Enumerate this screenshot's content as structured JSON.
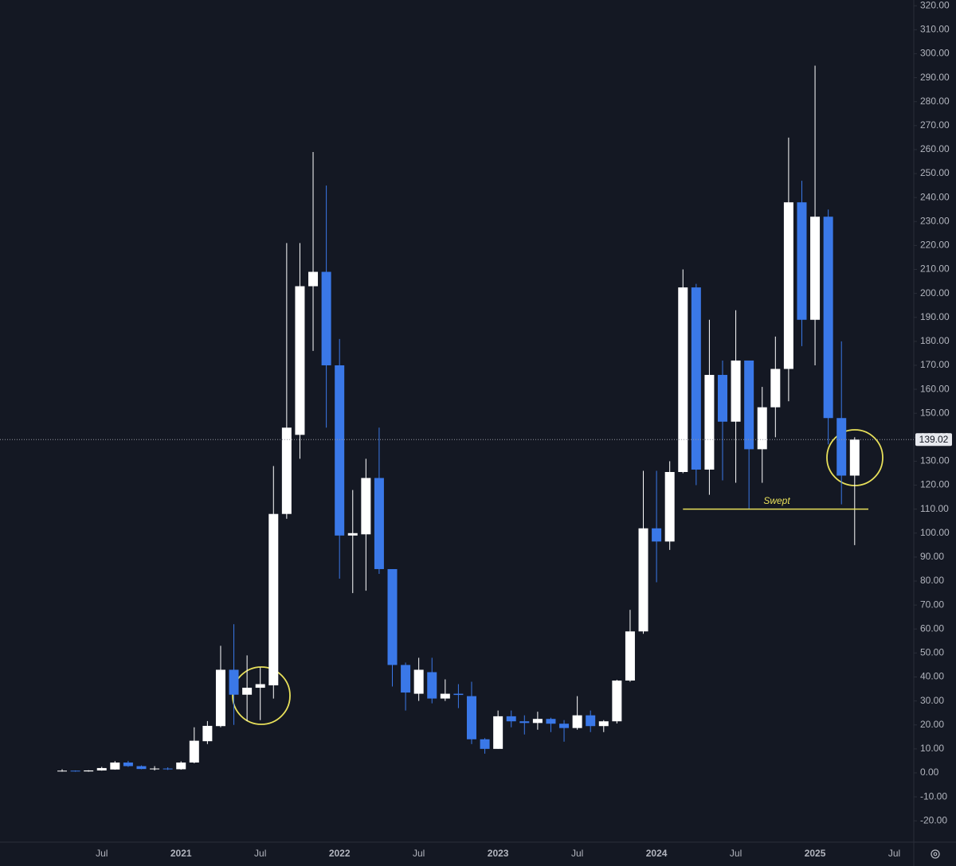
{
  "chart_data": {
    "type": "candlestick",
    "categories": [
      null,
      null,
      null,
      "Jul",
      null,
      null,
      null,
      null,
      null,
      "2021",
      null,
      null,
      null,
      null,
      null,
      "Jul",
      null,
      null,
      null,
      null,
      null,
      "2022",
      null,
      null,
      null,
      null,
      null,
      "Jul",
      null,
      null,
      null,
      null,
      null,
      "2023",
      null,
      null,
      null,
      null,
      null,
      "Jul",
      null,
      null,
      null,
      null,
      null,
      "2024",
      null,
      null,
      null,
      null,
      null,
      "Jul",
      null,
      null,
      null,
      null,
      null,
      "2025",
      null,
      null,
      null,
      null,
      null,
      "Jul"
    ],
    "open": [
      0.6,
      0.9,
      0.6,
      1.0,
      1.4,
      4.3,
      2.8,
      1.6,
      1.8,
      1.5,
      4.3,
      13.2,
      19.5,
      43,
      32.6,
      35.5,
      36.5,
      108,
      141,
      203,
      209,
      170,
      99,
      99.5,
      123,
      85,
      45,
      33,
      42,
      31,
      33,
      32,
      14,
      10,
      23.6,
      21.5,
      20.8,
      22.5,
      20.5,
      18.7,
      24,
      19.5,
      21.5,
      38.5,
      59,
      102,
      96.5,
      125.5,
      202.5,
      126.5,
      166,
      146.5,
      172,
      135,
      152.5,
      168.5,
      238,
      189,
      232,
      148,
      124,
      null,
      null,
      null
    ],
    "high": [
      1.5,
      1.0,
      1.1,
      2.5,
      4.9,
      5,
      3.1,
      2.8,
      2.3,
      4.8,
      19,
      21.6,
      53,
      62,
      49,
      44,
      128,
      221,
      221,
      259,
      245,
      181,
      118,
      131,
      144,
      85,
      46,
      48,
      48,
      39,
      37,
      38,
      14.5,
      26,
      26,
      24,
      25.5,
      23,
      22,
      32,
      26,
      22,
      38.8,
      68,
      126,
      126,
      130,
      210,
      204,
      189,
      172,
      193,
      172,
      161,
      182,
      265,
      247,
      295,
      235,
      180,
      140,
      null,
      null,
      null
    ],
    "low": [
      0.5,
      0.5,
      0.5,
      0.9,
      1.3,
      2.5,
      1.5,
      1.0,
      1.2,
      1.3,
      4,
      12,
      19,
      20,
      21.6,
      22,
      31,
      106,
      131,
      176,
      144,
      81,
      75,
      76,
      83,
      36,
      26,
      30,
      29,
      30,
      27,
      12,
      8,
      10,
      19,
      16,
      18,
      17,
      13,
      18,
      17,
      17,
      20.6,
      38,
      58,
      79.5,
      93,
      125,
      120,
      116,
      122,
      121,
      110,
      121,
      140,
      155,
      178,
      170,
      137,
      112,
      95,
      null,
      null,
      null
    ],
    "close": [
      0.9,
      0.6,
      1.0,
      2.0,
      4.3,
      2.8,
      1.6,
      1.8,
      1.5,
      4.3,
      13.4,
      19.6,
      43,
      32.6,
      35.5,
      37,
      108,
      144,
      203,
      209,
      170,
      99,
      100,
      123,
      85,
      45,
      33.5,
      43,
      31,
      33,
      32.5,
      14,
      10,
      23.6,
      21.5,
      20.8,
      22.5,
      20.5,
      18.7,
      24,
      19.5,
      21.5,
      38.5,
      59,
      102,
      96.5,
      125.5,
      202.5,
      126.5,
      166,
      146.5,
      172,
      135,
      152.5,
      168.5,
      238,
      189,
      232,
      148,
      124,
      139.02,
      null,
      null,
      null
    ],
    "up_color": "#ffffff",
    "down_color": "#3a78e8",
    "ylim": [
      -28.9,
      322.4
    ],
    "yticks": [
      {
        "value": -20,
        "label": "-20.00"
      },
      {
        "value": -10,
        "label": "-10.00"
      },
      {
        "value": 0,
        "label": "0.00"
      },
      {
        "value": 10,
        "label": "10.00"
      },
      {
        "value": 20,
        "label": "20.00"
      },
      {
        "value": 30,
        "label": "30.00"
      },
      {
        "value": 40,
        "label": "40.00"
      },
      {
        "value": 50,
        "label": "50.00"
      },
      {
        "value": 60,
        "label": "60.00"
      },
      {
        "value": 70,
        "label": "70.00"
      },
      {
        "value": 80,
        "label": "80.00"
      },
      {
        "value": 90,
        "label": "90.00"
      },
      {
        "value": 100,
        "label": "100.00"
      },
      {
        "value": 110,
        "label": "110.00"
      },
      {
        "value": 120,
        "label": "120.00"
      },
      {
        "value": 130,
        "label": "130.00"
      },
      {
        "value": 140,
        "label": "140.00"
      },
      {
        "value": 150,
        "label": "150.00"
      },
      {
        "value": 160,
        "label": "160.00"
      },
      {
        "value": 170,
        "label": "170.00"
      },
      {
        "value": 180,
        "label": "180.00"
      },
      {
        "value": 190,
        "label": "190.00"
      },
      {
        "value": 200,
        "label": "200.00"
      },
      {
        "value": 210,
        "label": "210.00"
      },
      {
        "value": 220,
        "label": "220.00"
      },
      {
        "value": 230,
        "label": "230.00"
      },
      {
        "value": 240,
        "label": "240.00"
      },
      {
        "value": 250,
        "label": "250.00"
      },
      {
        "value": 260,
        "label": "260.00"
      },
      {
        "value": 270,
        "label": "270.00"
      },
      {
        "value": 280,
        "label": "280.00"
      },
      {
        "value": 290,
        "label": "290.00"
      },
      {
        "value": 300,
        "label": "300.00"
      },
      {
        "value": 310,
        "label": "310.00"
      },
      {
        "value": 320,
        "label": "320.00"
      }
    ],
    "annotation": {
      "text": "Swept",
      "value": 110,
      "color": "#e8e05a"
    }
  }
}
